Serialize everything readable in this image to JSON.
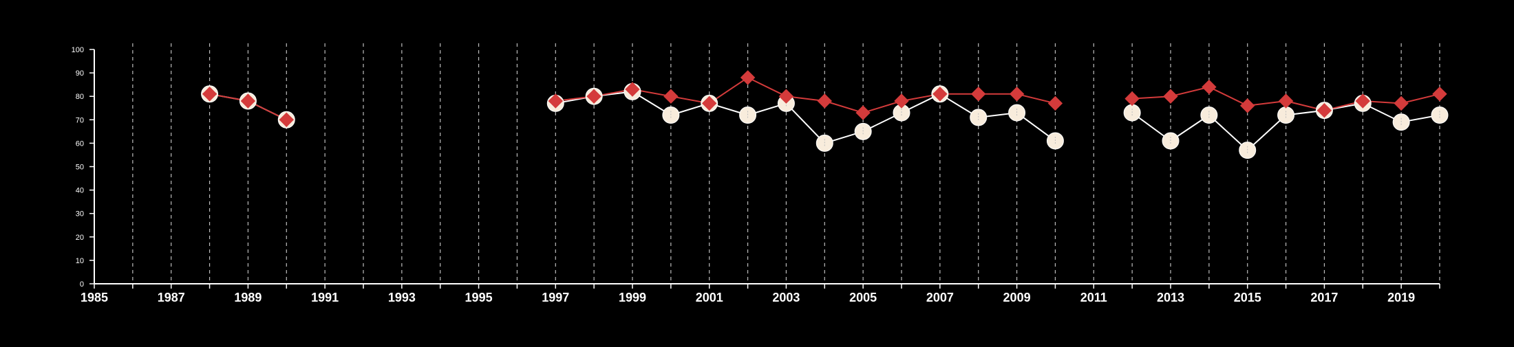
{
  "chart_data": {
    "type": "line",
    "title": "",
    "xlabel": "",
    "ylabel": "",
    "xlim": [
      1985,
      2020
    ],
    "ylim": [
      0,
      100
    ],
    "x_ticks": [
      1985,
      1986,
      1987,
      1988,
      1989,
      1990,
      1991,
      1992,
      1993,
      1994,
      1995,
      1996,
      1997,
      1998,
      1999,
      2000,
      2001,
      2002,
      2003,
      2004,
      2005,
      2006,
      2007,
      2008,
      2009,
      2010,
      2011,
      2012,
      2013,
      2014,
      2015,
      2016,
      2017,
      2018,
      2019,
      2020
    ],
    "x_tick_labels": [
      "1985",
      "",
      "1987",
      "",
      "1989",
      "",
      "1991",
      "",
      "1993",
      "",
      "1995",
      "",
      "1997",
      "",
      "1999",
      "",
      "2001",
      "",
      "2003",
      "",
      "2005",
      "",
      "2007",
      "",
      "2009",
      "",
      "2011",
      "",
      "2013",
      "",
      "2015",
      "",
      "2017",
      "",
      "2019",
      ""
    ],
    "y_ticks": [
      0,
      10,
      20,
      30,
      40,
      50,
      60,
      70,
      80,
      90,
      100
    ],
    "y_tick_labels": [
      "0",
      "10",
      "20",
      "30",
      "40",
      "50",
      "60",
      "70",
      "80",
      "90",
      "100"
    ],
    "grid": "vertical dashed",
    "series": [
      {
        "marker": "circle",
        "color": "#f8ecdc",
        "points": [
          [
            1988,
            81
          ],
          [
            1989,
            78
          ],
          [
            1990,
            70
          ],
          [
            1997,
            77
          ],
          [
            1998,
            80
          ],
          [
            1999,
            82
          ],
          [
            2000,
            72
          ],
          [
            2001,
            77
          ],
          [
            2002,
            72
          ],
          [
            2003,
            77
          ],
          [
            2004,
            60
          ],
          [
            2005,
            65
          ],
          [
            2006,
            73
          ],
          [
            2007,
            81
          ],
          [
            2008,
            71
          ],
          [
            2009,
            73
          ],
          [
            2010,
            61
          ],
          [
            2012,
            73
          ],
          [
            2013,
            61
          ],
          [
            2014,
            72
          ],
          [
            2015,
            57
          ],
          [
            2016,
            72
          ],
          [
            2017,
            74
          ],
          [
            2018,
            77
          ],
          [
            2019,
            69
          ],
          [
            2020,
            72
          ]
        ]
      },
      {
        "marker": "diamond",
        "color": "#d43b3b",
        "points": [
          [
            1988,
            81
          ],
          [
            1989,
            78
          ],
          [
            1990,
            70
          ],
          [
            1997,
            78
          ],
          [
            1998,
            80
          ],
          [
            1999,
            83
          ],
          [
            2000,
            80
          ],
          [
            2001,
            77
          ],
          [
            2002,
            88
          ],
          [
            2003,
            80
          ],
          [
            2004,
            78
          ],
          [
            2005,
            73
          ],
          [
            2006,
            78
          ],
          [
            2007,
            81
          ],
          [
            2008,
            81
          ],
          [
            2009,
            81
          ],
          [
            2010,
            77
          ],
          [
            2012,
            79
          ],
          [
            2013,
            80
          ],
          [
            2014,
            84
          ],
          [
            2015,
            76
          ],
          [
            2016,
            78
          ],
          [
            2017,
            74
          ],
          [
            2018,
            78
          ],
          [
            2019,
            77
          ],
          [
            2020,
            81
          ]
        ]
      }
    ]
  }
}
